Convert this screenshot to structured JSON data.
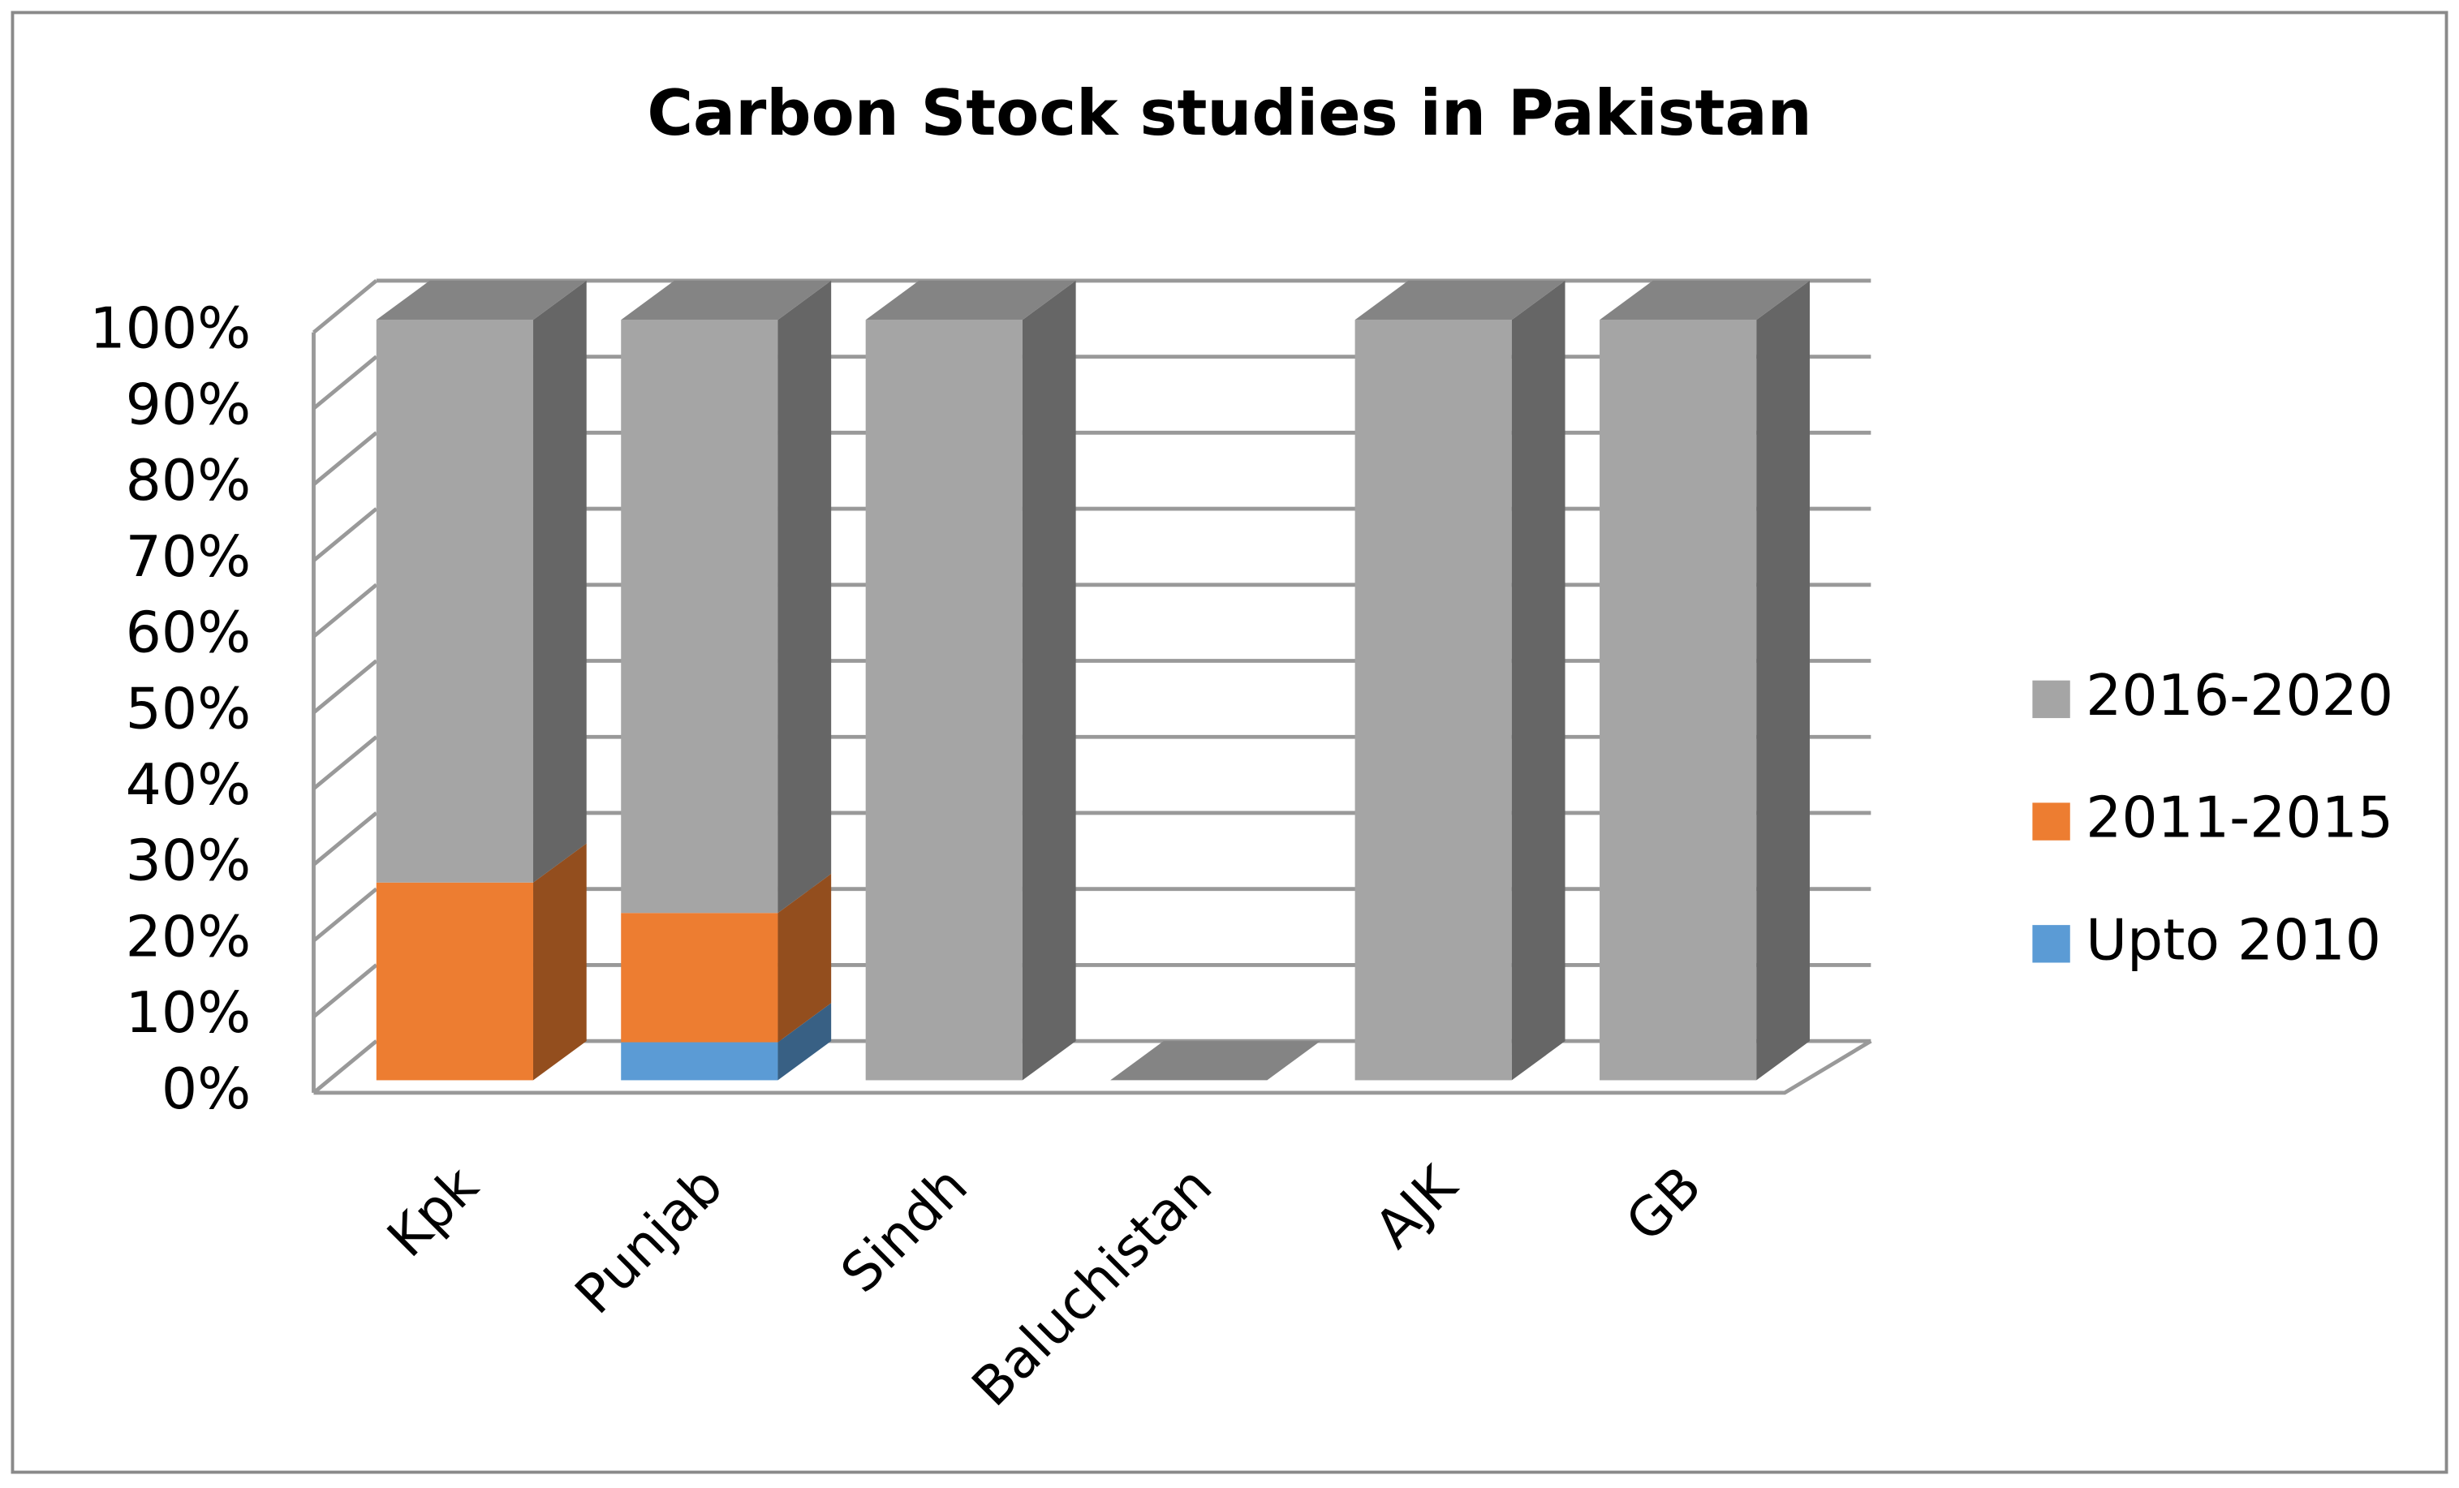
{
  "chart_data": {
    "type": "bar",
    "stacked": true,
    "title": "Carbon Stock studies in Pakistan",
    "categories": [
      "Kpk",
      "Punjab",
      "Sindh",
      "Baluchistan",
      "AJK",
      "GB"
    ],
    "series": [
      {
        "name": "Upto 2010",
        "color": "#5b9bd5",
        "values": [
          0,
          5,
          0,
          0,
          0,
          0
        ]
      },
      {
        "name": "2011-2015",
        "color": "#ed7d31",
        "values": [
          26,
          17,
          0,
          0,
          0,
          0
        ]
      },
      {
        "name": "2016-2020",
        "color": "#a5a5a5",
        "values": [
          74,
          78,
          100,
          0,
          100,
          100
        ]
      }
    ],
    "ylim": [
      0,
      100
    ],
    "yticks": [
      {
        "value": 0,
        "label": "0%"
      },
      {
        "value": 10,
        "label": "10%"
      },
      {
        "value": 20,
        "label": "20%"
      },
      {
        "value": 30,
        "label": "30%"
      },
      {
        "value": 40,
        "label": "40%"
      },
      {
        "value": 50,
        "label": "50%"
      },
      {
        "value": 60,
        "label": "60%"
      },
      {
        "value": 70,
        "label": "70%"
      },
      {
        "value": 80,
        "label": "80%"
      },
      {
        "value": 90,
        "label": "90%"
      },
      {
        "value": 100,
        "label": "100%"
      }
    ],
    "grid": true,
    "legend": "right"
  }
}
